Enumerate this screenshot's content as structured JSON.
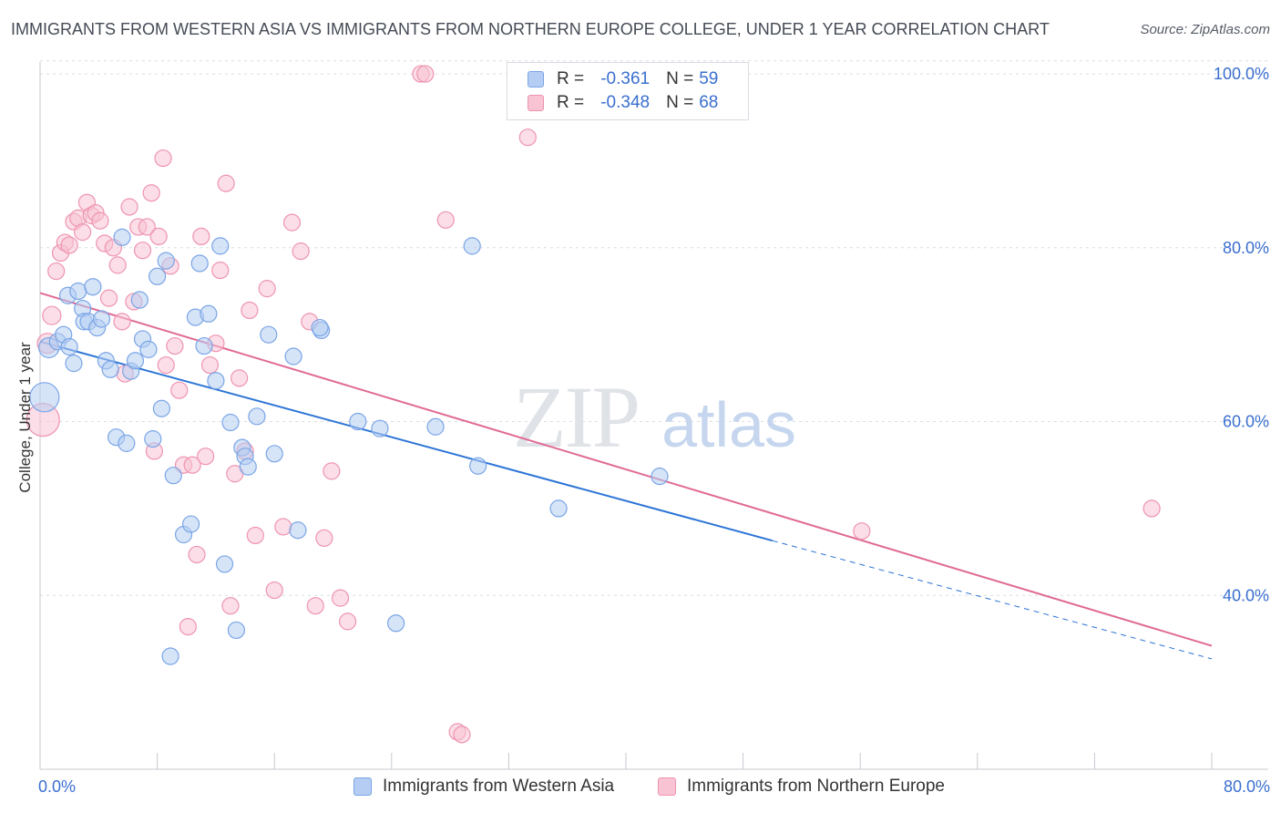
{
  "title": "IMMIGRANTS FROM WESTERN ASIA VS IMMIGRANTS FROM NORTHERN EUROPE COLLEGE, UNDER 1 YEAR CORRELATION CHART",
  "source": "Source: ZipAtlas.com",
  "watermark": {
    "zip": "ZIP",
    "atlas": "atlas"
  },
  "colors": {
    "blue_fill": "#b5cdf3",
    "blue_stroke": "#7aa5e6",
    "blue_line": "#2b74d6",
    "pink_fill": "#f8c3d3",
    "pink_stroke": "#ee94b0",
    "pink_line": "#e06a95",
    "tick_text": "#3a6fcf",
    "grid": "#d9dde3"
  },
  "legend": {
    "rows": [
      {
        "r_label": "R =",
        "r_value": "-0.361",
        "n_label": "N =",
        "n_value": "59"
      },
      {
        "r_label": "R =",
        "r_value": "-0.348",
        "n_label": "N =",
        "n_value": "68"
      }
    ]
  },
  "chart_data": {
    "type": "scatter",
    "title": "IMMIGRANTS FROM WESTERN ASIA VS IMMIGRANTS FROM NORTHERN EUROPE COLLEGE, UNDER 1 YEAR CORRELATION CHART",
    "xlabel": "",
    "ylabel": "College, Under 1 year",
    "xlim": [
      0,
      80
    ],
    "ylim": [
      20,
      102
    ],
    "x_tick_labels": [
      "0.0%",
      "80.0%"
    ],
    "y_tick_labels": [
      "40.0%",
      "60.0%",
      "80.0%",
      "100.0%"
    ],
    "y_ticks": [
      40,
      60,
      80,
      100
    ],
    "grid": true,
    "legend_position": "top-center",
    "series": [
      {
        "name": "Immigrants from Western Asia",
        "r": -0.361,
        "n": 59,
        "trend": {
          "x0": 0,
          "y0": 69.2,
          "x1": 50,
          "y1": 46.3,
          "dashed_to_x": 80,
          "dashed_to_y": 32.7
        },
        "points": [
          [
            0.3,
            62.8,
            16
          ],
          [
            0.6,
            68.5,
            11
          ],
          [
            1.2,
            69.2,
            9
          ],
          [
            1.6,
            70.0,
            9
          ],
          [
            1.9,
            74.5,
            9
          ],
          [
            2.0,
            68.6,
            9
          ],
          [
            2.3,
            66.7,
            9
          ],
          [
            2.6,
            75.0,
            9
          ],
          [
            2.9,
            73.0,
            9
          ],
          [
            3.0,
            71.5,
            9
          ],
          [
            3.3,
            71.5,
            9
          ],
          [
            3.6,
            75.5,
            9
          ],
          [
            3.9,
            70.8,
            9
          ],
          [
            4.2,
            71.8,
            9
          ],
          [
            4.5,
            67.0,
            9
          ],
          [
            4.8,
            66.0,
            9
          ],
          [
            5.2,
            58.2,
            9
          ],
          [
            5.6,
            81.2,
            9
          ],
          [
            5.9,
            57.5,
            9
          ],
          [
            6.2,
            65.8,
            9
          ],
          [
            6.5,
            67.0,
            9
          ],
          [
            6.8,
            74.0,
            9
          ],
          [
            7.0,
            69.5,
            9
          ],
          [
            7.4,
            68.3,
            9
          ],
          [
            7.7,
            58.0,
            9
          ],
          [
            8.0,
            76.7,
            9
          ],
          [
            8.3,
            61.5,
            9
          ],
          [
            8.6,
            78.5,
            9
          ],
          [
            8.9,
            33.0,
            9
          ],
          [
            9.1,
            53.8,
            9
          ],
          [
            9.8,
            47.0,
            9
          ],
          [
            10.3,
            48.2,
            9
          ],
          [
            10.6,
            72.0,
            9
          ],
          [
            10.9,
            78.2,
            9
          ],
          [
            11.2,
            68.7,
            9
          ],
          [
            11.5,
            72.4,
            9
          ],
          [
            12.0,
            64.7,
            9
          ],
          [
            12.3,
            80.2,
            9
          ],
          [
            12.6,
            43.6,
            9
          ],
          [
            13.0,
            59.9,
            9
          ],
          [
            13.4,
            36.0,
            9
          ],
          [
            13.8,
            57.0,
            9
          ],
          [
            14.0,
            56.0,
            9
          ],
          [
            14.2,
            54.8,
            9
          ],
          [
            14.8,
            60.6,
            9
          ],
          [
            15.6,
            70.0,
            9
          ],
          [
            16.0,
            56.3,
            9
          ],
          [
            17.3,
            67.5,
            9
          ],
          [
            17.6,
            47.5,
            9
          ],
          [
            19.2,
            70.5,
            9
          ],
          [
            21.7,
            60.0,
            9
          ],
          [
            23.2,
            59.2,
            9
          ],
          [
            24.3,
            36.8,
            9
          ],
          [
            27.0,
            59.4,
            9
          ],
          [
            29.5,
            80.2,
            9
          ],
          [
            29.9,
            54.9,
            9
          ],
          [
            35.4,
            50.0,
            9
          ],
          [
            42.3,
            53.7,
            9
          ],
          [
            19.1,
            70.8,
            9
          ]
        ]
      },
      {
        "name": "Immigrants from Northern Europe",
        "r": -0.348,
        "n": 68,
        "trend": {
          "x0": 0,
          "y0": 74.8,
          "x1": 80,
          "y1": 34.2
        },
        "points": [
          [
            0.2,
            60.2,
            18
          ],
          [
            0.5,
            69.0,
            11
          ],
          [
            0.8,
            72.2,
            10
          ],
          [
            1.1,
            77.3,
            9
          ],
          [
            1.4,
            79.4,
            9
          ],
          [
            1.7,
            80.6,
            9
          ],
          [
            2.0,
            80.3,
            9
          ],
          [
            2.3,
            83.0,
            9
          ],
          [
            2.6,
            83.4,
            9
          ],
          [
            2.9,
            81.8,
            9
          ],
          [
            3.2,
            85.2,
            9
          ],
          [
            3.5,
            83.7,
            9
          ],
          [
            3.8,
            84.0,
            9
          ],
          [
            4.1,
            83.1,
            9
          ],
          [
            4.4,
            80.5,
            9
          ],
          [
            4.7,
            74.2,
            9
          ],
          [
            5.0,
            80.0,
            9
          ],
          [
            5.3,
            78.0,
            9
          ],
          [
            5.6,
            71.5,
            9
          ],
          [
            5.8,
            65.5,
            9
          ],
          [
            6.1,
            84.7,
            9
          ],
          [
            6.4,
            73.8,
            9
          ],
          [
            6.7,
            82.4,
            9
          ],
          [
            7.0,
            79.7,
            9
          ],
          [
            7.3,
            82.4,
            9
          ],
          [
            7.6,
            86.3,
            9
          ],
          [
            7.8,
            56.6,
            9
          ],
          [
            8.1,
            81.3,
            9
          ],
          [
            8.4,
            90.3,
            9
          ],
          [
            8.6,
            66.5,
            9
          ],
          [
            8.9,
            77.9,
            9
          ],
          [
            9.2,
            68.7,
            9
          ],
          [
            9.5,
            63.6,
            9
          ],
          [
            9.8,
            55.0,
            9
          ],
          [
            10.1,
            36.4,
            9
          ],
          [
            10.4,
            55.0,
            9
          ],
          [
            10.7,
            44.7,
            9
          ],
          [
            11.0,
            81.3,
            9
          ],
          [
            11.3,
            56.0,
            9
          ],
          [
            11.6,
            66.5,
            9
          ],
          [
            12.0,
            69.0,
            9
          ],
          [
            12.3,
            77.4,
            9
          ],
          [
            12.7,
            87.4,
            9
          ],
          [
            13.0,
            38.8,
            9
          ],
          [
            13.3,
            54.0,
            9
          ],
          [
            13.6,
            65.0,
            9
          ],
          [
            14.0,
            56.6,
            9
          ],
          [
            14.3,
            72.8,
            9
          ],
          [
            14.7,
            46.9,
            9
          ],
          [
            15.5,
            75.3,
            9
          ],
          [
            16.0,
            40.6,
            9
          ],
          [
            16.6,
            47.9,
            9
          ],
          [
            17.2,
            82.9,
            9
          ],
          [
            17.8,
            79.6,
            9
          ],
          [
            18.4,
            71.5,
            9
          ],
          [
            18.8,
            38.8,
            9
          ],
          [
            19.4,
            46.6,
            9
          ],
          [
            19.9,
            54.3,
            9
          ],
          [
            20.5,
            39.7,
            9
          ],
          [
            21.0,
            37.0,
            9
          ],
          [
            26.0,
            100.0,
            9
          ],
          [
            26.3,
            100.0,
            9
          ],
          [
            27.7,
            83.2,
            9
          ],
          [
            28.5,
            24.3,
            9
          ],
          [
            28.8,
            24.0,
            9
          ],
          [
            33.3,
            92.7,
            9
          ],
          [
            56.1,
            47.4,
            9
          ],
          [
            75.9,
            50.0,
            9
          ]
        ]
      }
    ]
  }
}
